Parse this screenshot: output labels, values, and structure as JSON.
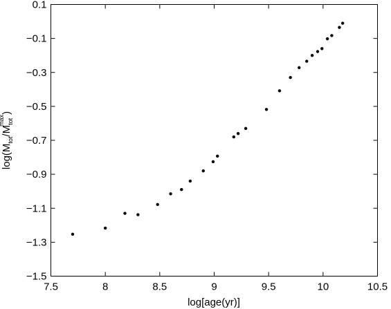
{
  "chart_data": {
    "type": "scatter",
    "title": "",
    "xlabel": "log[age(yr)]",
    "ylabel": {
      "prefix": "log(M",
      "sub1": "tot",
      "mid": "/M",
      "sub2": "tot",
      "sup2": "max",
      "suffix": ")"
    },
    "xlim": [
      7.5,
      10.5
    ],
    "ylim": [
      -1.5,
      0.1
    ],
    "x_ticks": [
      7.5,
      8,
      8.5,
      9,
      9.5,
      10,
      10.5
    ],
    "x_tick_labels": [
      "7.5",
      "8",
      "8.5",
      "9",
      "9.5",
      "10",
      "10.5"
    ],
    "y_ticks": [
      0.1,
      -0.1,
      -0.3,
      -0.5,
      -0.7,
      -0.9,
      -1.1,
      -1.3,
      -1.5
    ],
    "y_tick_labels": [
      "0.1",
      "−0.1",
      "−0.3",
      "−0.5",
      "−0.7",
      "−0.9",
      "−1.1",
      "−1.3",
      "−1.5"
    ],
    "grid": false,
    "series": [
      {
        "x": [
          7.7,
          8.0,
          8.18,
          8.3,
          8.48,
          8.6,
          8.7,
          8.78,
          8.9,
          8.99,
          9.03,
          9.18,
          9.22,
          9.29,
          9.48,
          9.6,
          9.7,
          9.78,
          9.85,
          9.9,
          9.95,
          9.99,
          10.04,
          10.08,
          10.15,
          10.18
        ],
        "y": [
          -1.253,
          -1.217,
          -1.13,
          -1.138,
          -1.078,
          -1.015,
          -0.99,
          -0.94,
          -0.88,
          -0.826,
          -0.793,
          -0.68,
          -0.66,
          -0.63,
          -0.518,
          -0.408,
          -0.33,
          -0.272,
          -0.234,
          -0.2,
          -0.177,
          -0.16,
          -0.102,
          -0.083,
          -0.035,
          -0.01
        ]
      }
    ]
  }
}
